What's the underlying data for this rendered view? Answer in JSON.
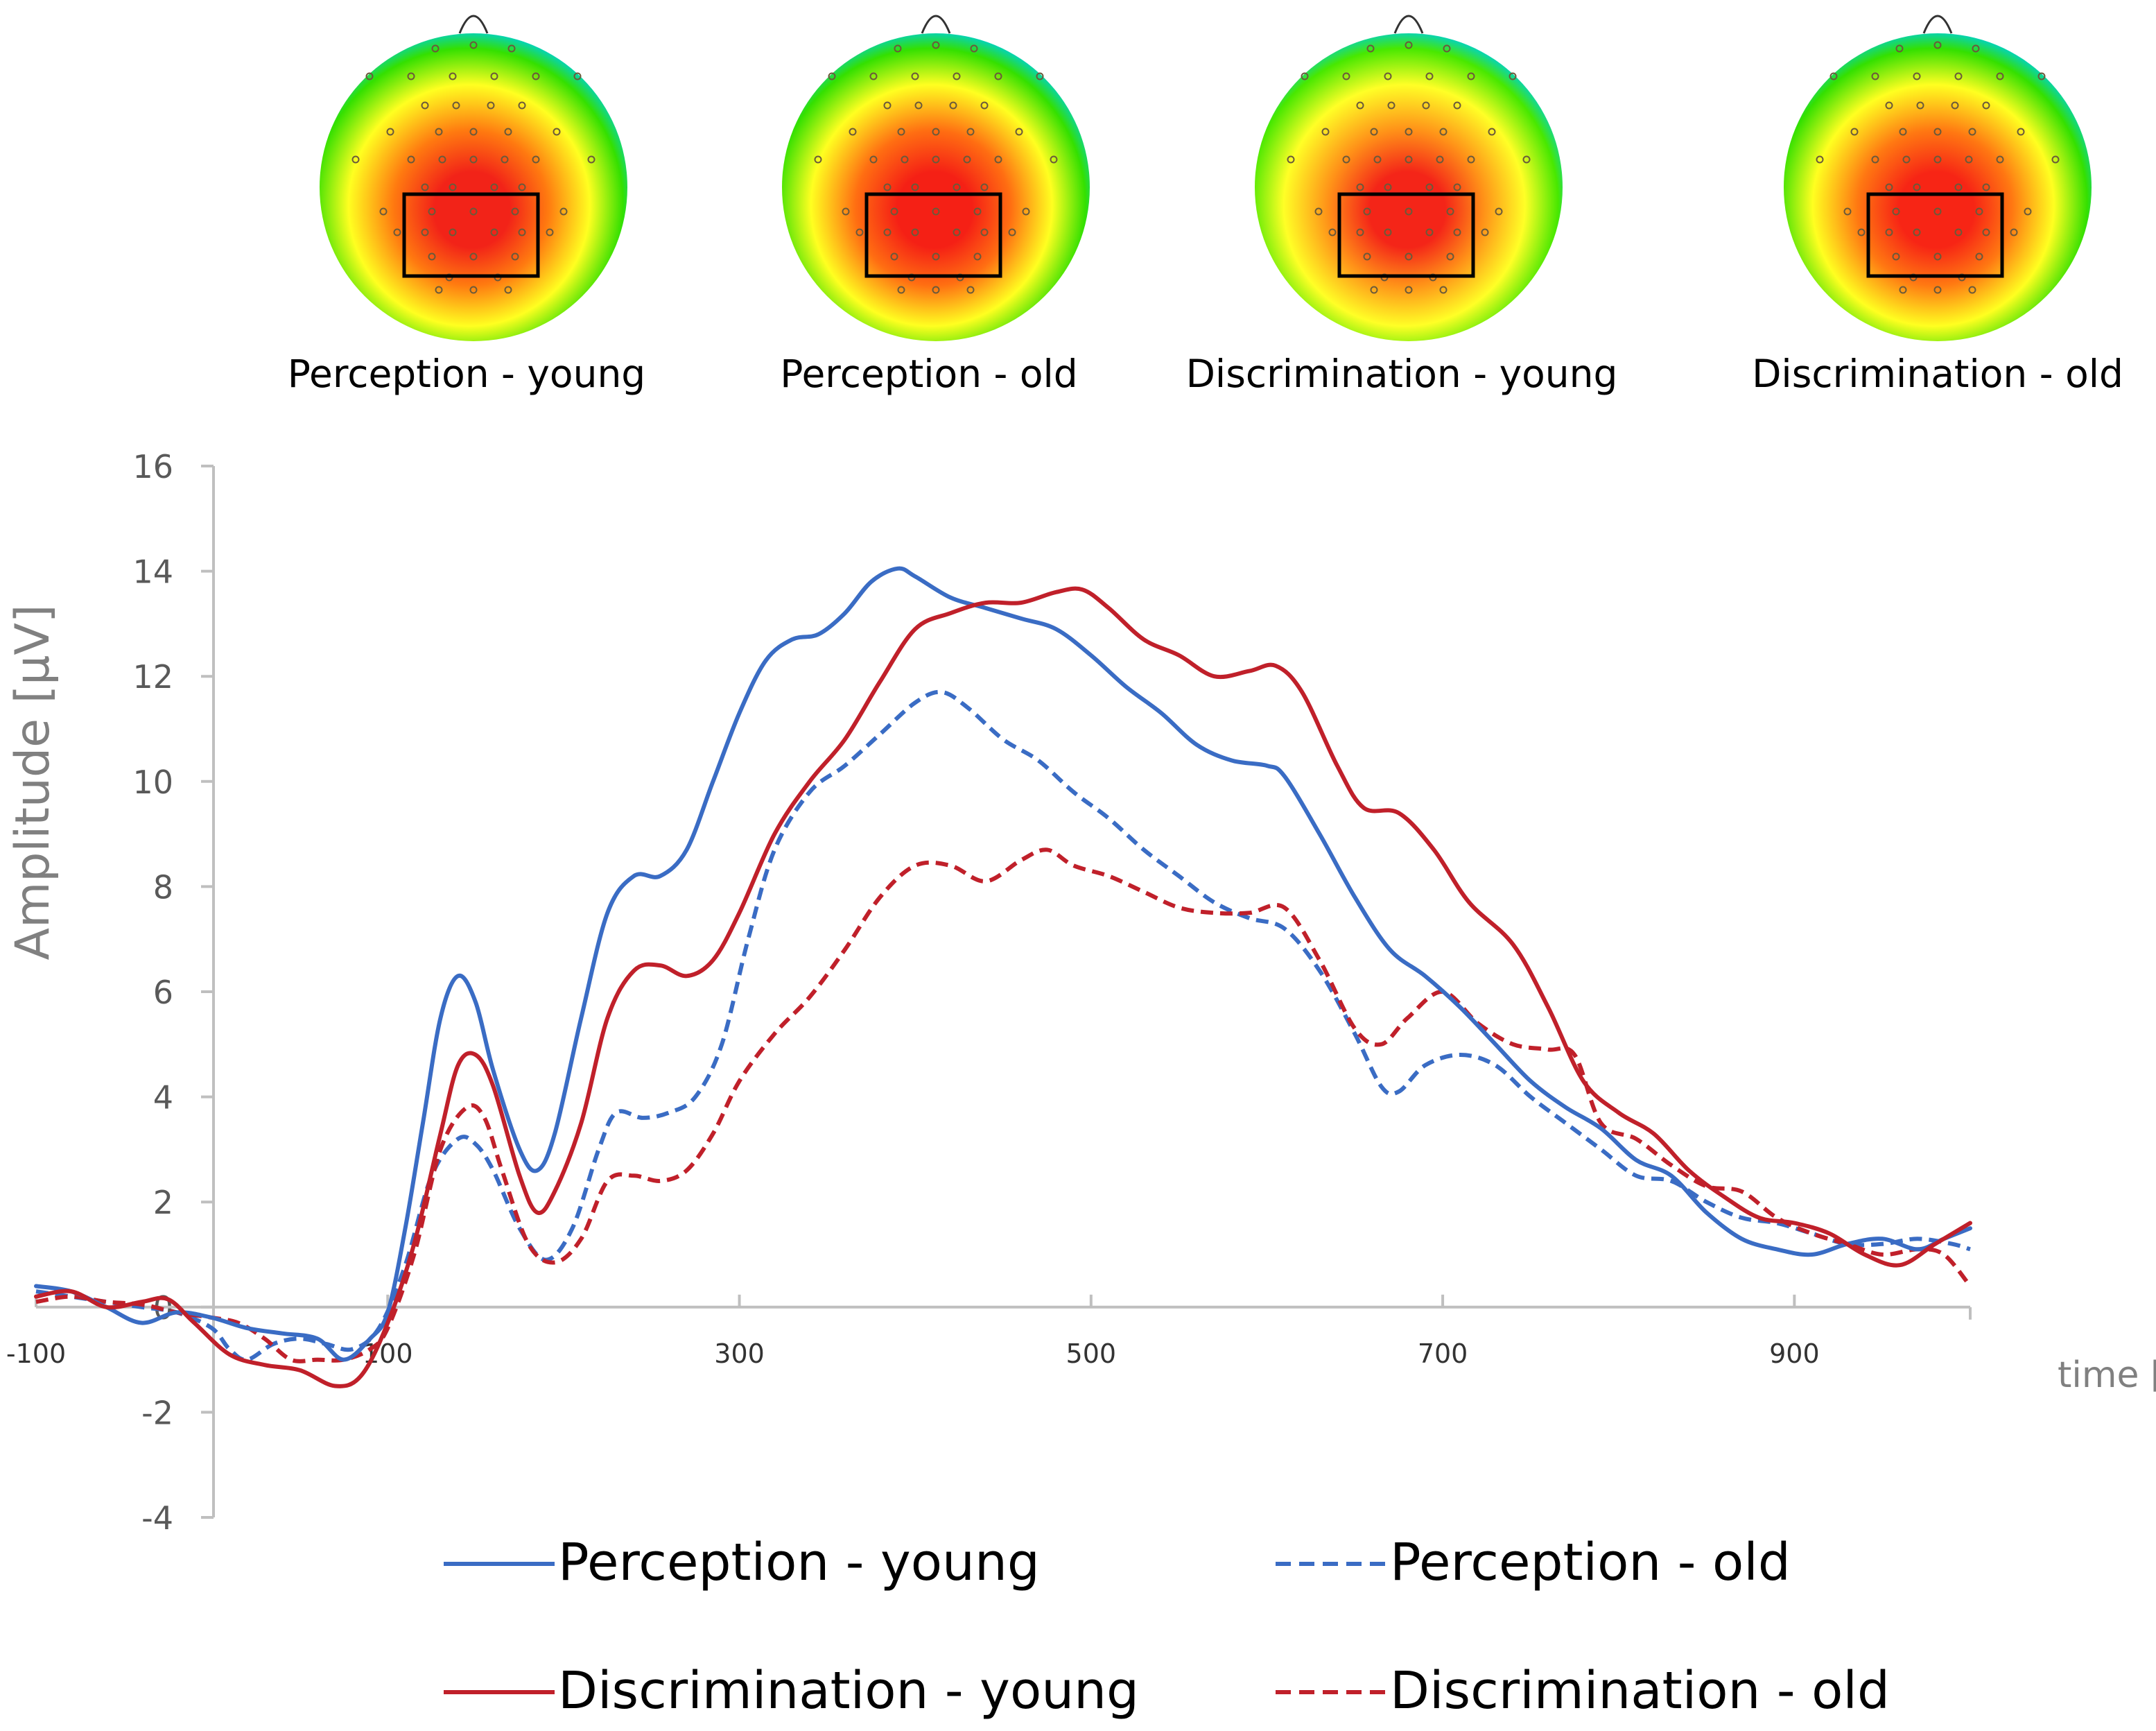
{
  "chart_data": {
    "type": "line",
    "ylabel": "Amplitude [µV]",
    "xlabel": "time [ms]",
    "xlim": [
      -100,
      1000
    ],
    "ylim": [
      -4,
      16
    ],
    "xticks": [
      -100,
      100,
      300,
      500,
      700,
      900
    ],
    "yticks": [
      -4,
      -2,
      0,
      2,
      4,
      6,
      8,
      10,
      12,
      14,
      16
    ],
    "grid": false,
    "legend_position": "bottom",
    "series": [
      {
        "name": "Perception - young",
        "color": "#3a6cc4",
        "dash": "solid",
        "points": [
          [
            -100,
            0.4
          ],
          [
            -80,
            0.3
          ],
          [
            -60,
            0
          ],
          [
            -40,
            -0.3
          ],
          [
            -20,
            -0.1
          ],
          [
            0,
            -0.2
          ],
          [
            20,
            -0.4
          ],
          [
            40,
            -0.5
          ],
          [
            60,
            -0.6
          ],
          [
            75,
            -1
          ],
          [
            90,
            -0.6
          ],
          [
            100,
            -0.1
          ],
          [
            110,
            1.5
          ],
          [
            120,
            3.5
          ],
          [
            130,
            5.5
          ],
          [
            140,
            6.3
          ],
          [
            150,
            5.8
          ],
          [
            160,
            4.5
          ],
          [
            175,
            3
          ],
          [
            185,
            2.6
          ],
          [
            195,
            3.3
          ],
          [
            210,
            5.5
          ],
          [
            225,
            7.5
          ],
          [
            240,
            8.2
          ],
          [
            255,
            8.2
          ],
          [
            270,
            8.7
          ],
          [
            285,
            10
          ],
          [
            300,
            11.3
          ],
          [
            315,
            12.3
          ],
          [
            330,
            12.7
          ],
          [
            345,
            12.8
          ],
          [
            360,
            13.2
          ],
          [
            375,
            13.8
          ],
          [
            390,
            14.05
          ],
          [
            400,
            13.9
          ],
          [
            420,
            13.5
          ],
          [
            440,
            13.3
          ],
          [
            460,
            13.1
          ],
          [
            480,
            12.9
          ],
          [
            500,
            12.4
          ],
          [
            520,
            11.8
          ],
          [
            540,
            11.3
          ],
          [
            560,
            10.7
          ],
          [
            580,
            10.4
          ],
          [
            600,
            10.3
          ],
          [
            610,
            10.1
          ],
          [
            630,
            9
          ],
          [
            650,
            7.8
          ],
          [
            670,
            6.8
          ],
          [
            690,
            6.3
          ],
          [
            710,
            5.7
          ],
          [
            730,
            5
          ],
          [
            750,
            4.3
          ],
          [
            770,
            3.8
          ],
          [
            790,
            3.4
          ],
          [
            810,
            2.8
          ],
          [
            830,
            2.5
          ],
          [
            850,
            1.8
          ],
          [
            870,
            1.3
          ],
          [
            890,
            1.1
          ],
          [
            910,
            1
          ],
          [
            930,
            1.2
          ],
          [
            950,
            1.3
          ],
          [
            970,
            1.1
          ],
          [
            985,
            1.3
          ],
          [
            1000,
            1.5
          ]
        ]
      },
      {
        "name": "Perception - old",
        "color": "#3a6cc4",
        "dash": "dashed",
        "points": [
          [
            -100,
            0.3
          ],
          [
            -80,
            0.2
          ],
          [
            -60,
            0.1
          ],
          [
            -40,
            0
          ],
          [
            -20,
            -0.1
          ],
          [
            0,
            -0.4
          ],
          [
            10,
            -0.8
          ],
          [
            20,
            -1
          ],
          [
            35,
            -0.7
          ],
          [
            50,
            -0.6
          ],
          [
            65,
            -0.7
          ],
          [
            80,
            -0.8
          ],
          [
            95,
            -0.4
          ],
          [
            110,
            0.8
          ],
          [
            125,
            2.5
          ],
          [
            140,
            3.2
          ],
          [
            150,
            3.1
          ],
          [
            160,
            2.6
          ],
          [
            175,
            1.5
          ],
          [
            190,
            0.9
          ],
          [
            205,
            1.5
          ],
          [
            220,
            3
          ],
          [
            230,
            3.7
          ],
          [
            245,
            3.6
          ],
          [
            260,
            3.7
          ],
          [
            275,
            4
          ],
          [
            290,
            5
          ],
          [
            305,
            7
          ],
          [
            320,
            8.7
          ],
          [
            340,
            9.8
          ],
          [
            360,
            10.3
          ],
          [
            380,
            10.9
          ],
          [
            400,
            11.5
          ],
          [
            415,
            11.7
          ],
          [
            430,
            11.4
          ],
          [
            450,
            10.8
          ],
          [
            470,
            10.4
          ],
          [
            490,
            9.8
          ],
          [
            510,
            9.3
          ],
          [
            530,
            8.7
          ],
          [
            550,
            8.2
          ],
          [
            570,
            7.7
          ],
          [
            590,
            7.4
          ],
          [
            610,
            7.2
          ],
          [
            630,
            6.4
          ],
          [
            650,
            5.2
          ],
          [
            665,
            4.2
          ],
          [
            675,
            4.1
          ],
          [
            690,
            4.6
          ],
          [
            710,
            4.8
          ],
          [
            730,
            4.6
          ],
          [
            750,
            4
          ],
          [
            770,
            3.5
          ],
          [
            790,
            3
          ],
          [
            810,
            2.5
          ],
          [
            830,
            2.4
          ],
          [
            850,
            2
          ],
          [
            870,
            1.7
          ],
          [
            890,
            1.6
          ],
          [
            910,
            1.4
          ],
          [
            930,
            1.2
          ],
          [
            950,
            1.2
          ],
          [
            970,
            1.3
          ],
          [
            990,
            1.2
          ],
          [
            1000,
            1.1
          ]
        ]
      },
      {
        "name": "Discrimination - young",
        "color": "#c0202a",
        "dash": "solid",
        "points": [
          [
            -100,
            0.2
          ],
          [
            -80,
            0.3
          ],
          [
            -60,
            0
          ],
          [
            -40,
            0.1
          ],
          [
            -25,
            0.15
          ],
          [
            -10,
            -0.3
          ],
          [
            10,
            -0.9
          ],
          [
            30,
            -1.1
          ],
          [
            50,
            -1.2
          ],
          [
            70,
            -1.5
          ],
          [
            85,
            -1.3
          ],
          [
            100,
            -0.3
          ],
          [
            115,
            1.2
          ],
          [
            130,
            3.3
          ],
          [
            140,
            4.6
          ],
          [
            150,
            4.8
          ],
          [
            160,
            4.2
          ],
          [
            175,
            2.5
          ],
          [
            185,
            1.8
          ],
          [
            195,
            2.2
          ],
          [
            210,
            3.5
          ],
          [
            225,
            5.5
          ],
          [
            240,
            6.4
          ],
          [
            255,
            6.5
          ],
          [
            270,
            6.3
          ],
          [
            285,
            6.6
          ],
          [
            300,
            7.5
          ],
          [
            320,
            9
          ],
          [
            340,
            10
          ],
          [
            360,
            10.8
          ],
          [
            380,
            11.9
          ],
          [
            400,
            12.9
          ],
          [
            420,
            13.2
          ],
          [
            440,
            13.4
          ],
          [
            460,
            13.4
          ],
          [
            480,
            13.6
          ],
          [
            495,
            13.65
          ],
          [
            510,
            13.3
          ],
          [
            530,
            12.7
          ],
          [
            550,
            12.4
          ],
          [
            570,
            12
          ],
          [
            590,
            12.1
          ],
          [
            605,
            12.2
          ],
          [
            620,
            11.7
          ],
          [
            640,
            10.3
          ],
          [
            655,
            9.5
          ],
          [
            675,
            9.4
          ],
          [
            695,
            8.7
          ],
          [
            715,
            7.7
          ],
          [
            740,
            6.9
          ],
          [
            760,
            5.7
          ],
          [
            780,
            4.3
          ],
          [
            800,
            3.7
          ],
          [
            820,
            3.3
          ],
          [
            840,
            2.6
          ],
          [
            860,
            2.1
          ],
          [
            880,
            1.7
          ],
          [
            900,
            1.6
          ],
          [
            920,
            1.4
          ],
          [
            940,
            1
          ],
          [
            960,
            0.8
          ],
          [
            980,
            1.2
          ],
          [
            1000,
            1.6
          ]
        ]
      },
      {
        "name": "Discrimination - old",
        "color": "#c0202a",
        "dash": "dashed",
        "points": [
          [
            -100,
            0.1
          ],
          [
            -80,
            0.2
          ],
          [
            -60,
            0.1
          ],
          [
            -40,
            0.05
          ],
          [
            -20,
            -0.1
          ],
          [
            0,
            -0.2
          ],
          [
            15,
            -0.3
          ],
          [
            30,
            -0.6
          ],
          [
            45,
            -1
          ],
          [
            60,
            -1
          ],
          [
            75,
            -1
          ],
          [
            90,
            -0.8
          ],
          [
            100,
            -0.4
          ],
          [
            115,
            1
          ],
          [
            130,
            3
          ],
          [
            145,
            3.8
          ],
          [
            155,
            3.6
          ],
          [
            165,
            2.6
          ],
          [
            180,
            1.2
          ],
          [
            195,
            0.85
          ],
          [
            210,
            1.3
          ],
          [
            225,
            2.4
          ],
          [
            240,
            2.5
          ],
          [
            255,
            2.4
          ],
          [
            270,
            2.6
          ],
          [
            285,
            3.3
          ],
          [
            300,
            4.3
          ],
          [
            320,
            5.2
          ],
          [
            340,
            5.9
          ],
          [
            360,
            6.8
          ],
          [
            380,
            7.8
          ],
          [
            400,
            8.4
          ],
          [
            420,
            8.4
          ],
          [
            440,
            8.1
          ],
          [
            460,
            8.5
          ],
          [
            475,
            8.7
          ],
          [
            490,
            8.4
          ],
          [
            510,
            8.2
          ],
          [
            530,
            7.9
          ],
          [
            550,
            7.6
          ],
          [
            570,
            7.5
          ],
          [
            590,
            7.5
          ],
          [
            610,
            7.6
          ],
          [
            630,
            6.6
          ],
          [
            650,
            5.3
          ],
          [
            665,
            5
          ],
          [
            680,
            5.5
          ],
          [
            700,
            6
          ],
          [
            720,
            5.4
          ],
          [
            740,
            5
          ],
          [
            760,
            4.9
          ],
          [
            775,
            4.8
          ],
          [
            790,
            3.5
          ],
          [
            810,
            3.2
          ],
          [
            830,
            2.7
          ],
          [
            850,
            2.3
          ],
          [
            870,
            2.2
          ],
          [
            890,
            1.7
          ],
          [
            910,
            1.4
          ],
          [
            930,
            1.2
          ],
          [
            950,
            1
          ],
          [
            970,
            1.1
          ],
          [
            985,
            1
          ],
          [
            1000,
            0.4
          ]
        ]
      }
    ]
  },
  "topomaps": [
    {
      "label": "Perception - young",
      "colors": {
        "center": "#f22318",
        "mid": "#ff7a10",
        "outer": "#ffff20",
        "edge": "#34e000",
        "rim": "#00d2c8"
      }
    },
    {
      "label": "Perception - old",
      "colors": {
        "center": "#f52015",
        "mid": "#ff6e12",
        "outer": "#ffff20",
        "edge": "#34e000",
        "rim": "#00d2c8"
      }
    },
    {
      "label": "Discrimination - young",
      "colors": {
        "center": "#f42518",
        "mid": "#ff9018",
        "outer": "#ffff26",
        "edge": "#48e800",
        "rim": "#00d2c8"
      }
    },
    {
      "label": "Discrimination - old",
      "colors": {
        "center": "#f72515",
        "mid": "#ff7812",
        "outer": "#ffff20",
        "edge": "#34e000",
        "rim": "#00d2c8"
      }
    }
  ]
}
